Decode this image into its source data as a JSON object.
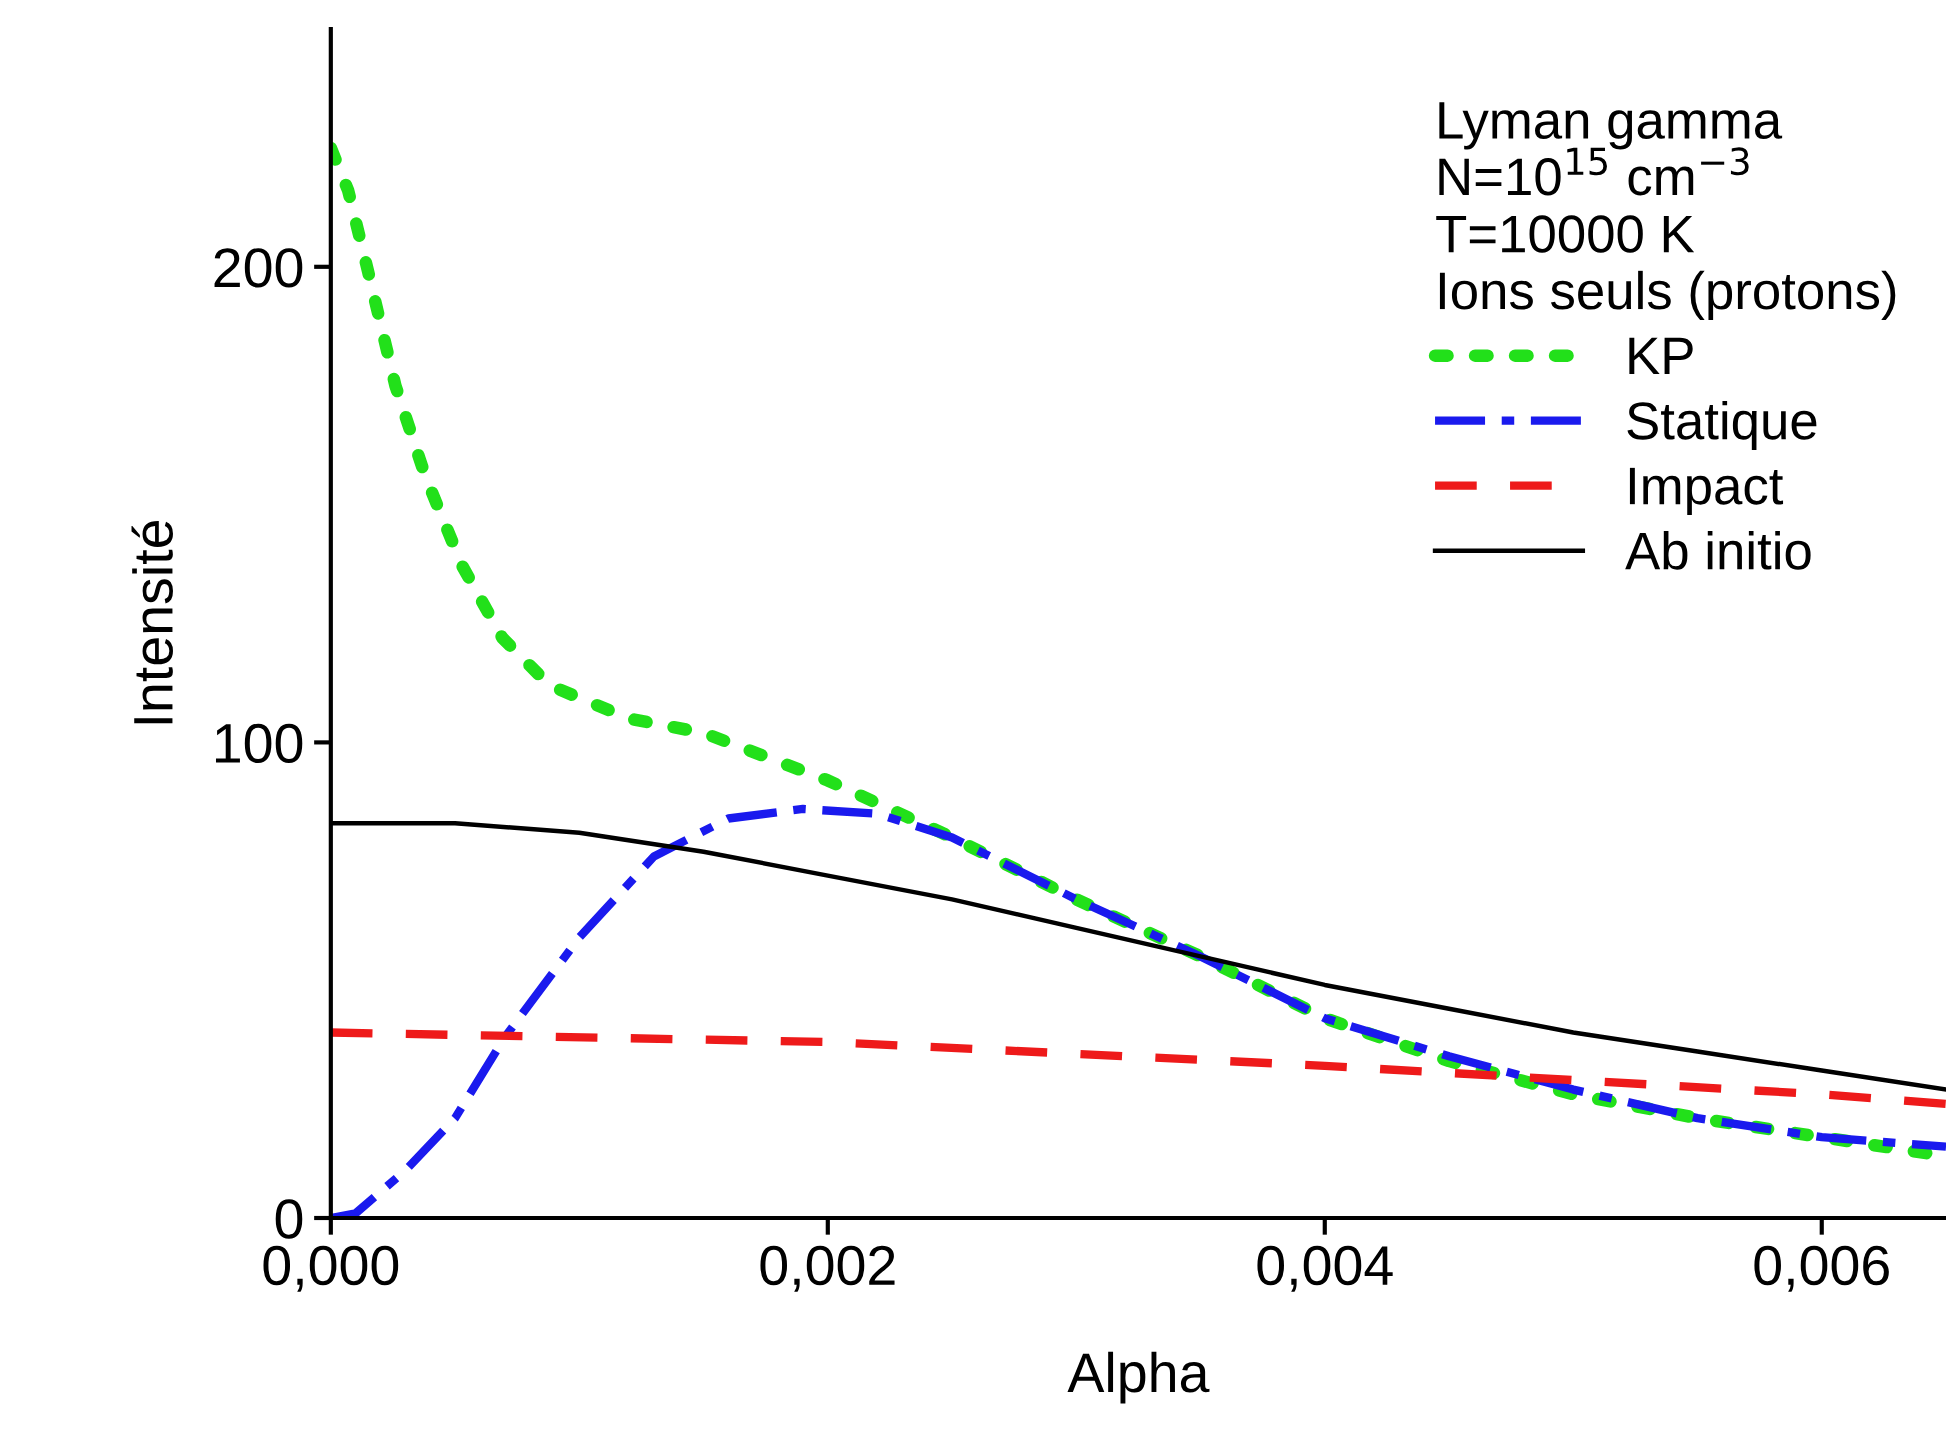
{
  "chart_data": {
    "type": "line",
    "xlabel": "Alpha",
    "ylabel": "Intensité",
    "legend_title": "Lyman gamma\nN=10$^{15}$ cm$^{−3}$\nT=10000 K\nIons seuls (protons)",
    "xlim": [
      0,
      0.0065
    ],
    "ylim": [
      0,
      250
    ],
    "xticks": [
      {
        "value": 0,
        "label": "0,000"
      },
      {
        "value": 0.002,
        "label": "0,002"
      },
      {
        "value": 0.004,
        "label": "0,004"
      },
      {
        "value": 0.006,
        "label": "0,006"
      }
    ],
    "yticks": [
      0,
      100,
      200
    ],
    "grid": false,
    "legend": "top right",
    "series": [
      {
        "name": "KP",
        "color": "#22e01a",
        "line_style": "dotted",
        "x": [
          0,
          7e-05,
          0.00015,
          0.00026,
          0.00038,
          0.00053,
          0.00069,
          0.00088,
          0.0012,
          0.0015,
          0.002,
          0.0025,
          0.003,
          0.0035,
          0.004,
          0.0045,
          0.005,
          0.0055,
          0.006,
          0.0065
        ],
        "values": [
          225,
          216,
          199,
          175,
          156,
          137,
          122,
          112,
          105,
          102,
          92,
          80,
          67,
          55,
          42,
          33,
          26,
          21,
          17,
          13
        ]
      },
      {
        "name": "Statique",
        "color": "#1a1aee",
        "line_style": "dashdot",
        "x": [
          0,
          0.0001,
          0.0003,
          0.0005,
          0.0007,
          0.001,
          0.0013,
          0.0016,
          0.0019,
          0.0022,
          0.0025,
          0.003,
          0.0035,
          0.004,
          0.0045,
          0.005,
          0.0055,
          0.006,
          0.0065
        ],
        "values": [
          0,
          1,
          10,
          21,
          38,
          59,
          76,
          84,
          86,
          85,
          80,
          67,
          55,
          42,
          34,
          27,
          21,
          17,
          15
        ]
      },
      {
        "name": "Impact",
        "color": "#ee1a1a",
        "line_style": "dashed",
        "x": [
          0,
          0.002,
          0.004,
          0.005,
          0.006,
          0.0065
        ],
        "values": [
          39,
          37,
          32,
          29,
          26,
          24
        ]
      },
      {
        "name": "Ab initio",
        "color": "#000000",
        "line_style": "solid",
        "x": [
          0,
          0.0005,
          0.001,
          0.0015,
          0.002,
          0.0025,
          0.003,
          0.0035,
          0.004,
          0.0045,
          0.005,
          0.0055,
          0.006,
          0.0065
        ],
        "values": [
          83,
          83,
          81,
          77,
          72,
          67,
          61,
          55,
          49,
          44,
          39,
          35,
          31,
          27
        ]
      }
    ]
  }
}
